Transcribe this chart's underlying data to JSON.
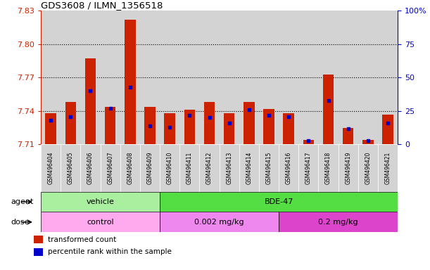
{
  "title": "GDS3608 / ILMN_1356518",
  "samples": [
    "GSM496404",
    "GSM496405",
    "GSM496406",
    "GSM496407",
    "GSM496408",
    "GSM496409",
    "GSM496410",
    "GSM496411",
    "GSM496412",
    "GSM496413",
    "GSM496414",
    "GSM496415",
    "GSM496416",
    "GSM496417",
    "GSM496418",
    "GSM496419",
    "GSM496420",
    "GSM496421"
  ],
  "red_values": [
    7.738,
    7.748,
    7.787,
    7.744,
    7.822,
    7.744,
    7.738,
    7.741,
    7.748,
    7.738,
    7.748,
    7.742,
    7.738,
    7.714,
    7.773,
    7.725,
    7.714,
    7.737
  ],
  "blue_pct": [
    18,
    21,
    40,
    27,
    43,
    14,
    13,
    22,
    20,
    16,
    26,
    22,
    21,
    3,
    33,
    12,
    3,
    16
  ],
  "ymin": 7.71,
  "ymax": 7.83,
  "yticks": [
    7.71,
    7.74,
    7.77,
    7.8,
    7.83
  ],
  "ytick_labels": [
    "7.71",
    "7.74",
    "7.77",
    "7.80",
    "7.83"
  ],
  "y2ticks": [
    0,
    25,
    50,
    75,
    100
  ],
  "y2tick_labels": [
    "0",
    "25",
    "50",
    "75",
    "100%"
  ],
  "grid_lines": [
    7.74,
    7.77,
    7.8
  ],
  "agent_groups": [
    {
      "label": "vehicle",
      "start": 0,
      "end": 6,
      "color": "#aaeea0"
    },
    {
      "label": "BDE-47",
      "start": 6,
      "end": 18,
      "color": "#55dd44"
    }
  ],
  "dose_groups": [
    {
      "label": "control",
      "start": 0,
      "end": 6,
      "color": "#ffaaee"
    },
    {
      "label": "0.002 mg/kg",
      "start": 6,
      "end": 12,
      "color": "#ee88ee"
    },
    {
      "label": "0.2 mg/kg",
      "start": 12,
      "end": 18,
      "color": "#dd44cc"
    }
  ],
  "bar_color": "#cc2200",
  "dot_color": "#0000cc",
  "plot_bg": "#d3d3d3",
  "tick_bg": "#d3d3d3",
  "left_color": "#cc2200",
  "right_color": "#0000cc",
  "bar_width": 0.55
}
